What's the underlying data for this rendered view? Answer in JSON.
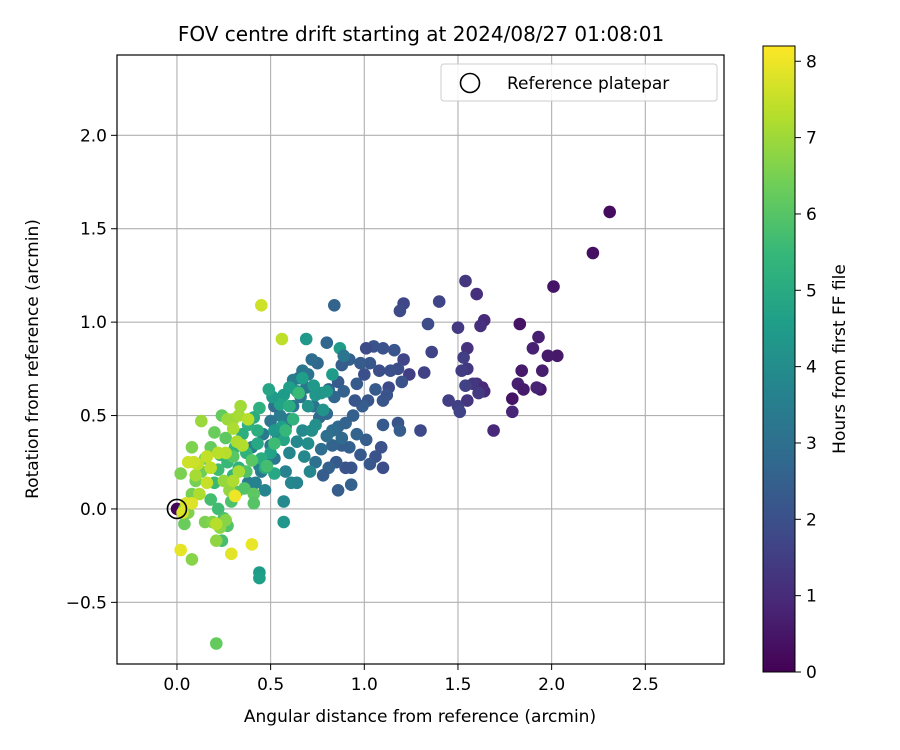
{
  "chart_data": {
    "type": "scatter",
    "title": "FOV centre drift starting at 2024/08/27 01:08:01",
    "xlabel": "Angular distance from reference (arcmin)",
    "ylabel": "Rotation from reference (arcmin)",
    "xlim": [
      -0.32,
      2.92
    ],
    "ylim": [
      -0.83,
      2.43
    ],
    "xticks": [
      0.0,
      0.5,
      1.0,
      1.5,
      2.0,
      2.5
    ],
    "xtick_labels": [
      "0.0",
      "0.5",
      "1.0",
      "1.5",
      "2.0",
      "2.5"
    ],
    "yticks": [
      -0.5,
      0.0,
      0.5,
      1.0,
      1.5,
      2.0
    ],
    "ytick_labels": [
      "−0.5",
      "0.0",
      "0.5",
      "1.0",
      "1.5",
      "2.0"
    ],
    "grid": true,
    "legend": {
      "placement": "top-right",
      "entries": [
        "Reference platepar"
      ]
    },
    "reference_point": {
      "x": 0.0,
      "y": 0.0
    },
    "colorbar": {
      "label": "Hours from first FF file",
      "colormap": "viridis",
      "range": [
        0,
        8.2
      ],
      "ticks": [
        0,
        1,
        2,
        3,
        4,
        5,
        6,
        7,
        8
      ],
      "tick_labels": [
        "0",
        "1",
        "2",
        "3",
        "4",
        "5",
        "6",
        "7",
        "8"
      ]
    },
    "points": [
      [
        0.0,
        0.0,
        0.1
      ],
      [
        2.31,
        1.59,
        0.25
      ],
      [
        2.22,
        1.37,
        0.35
      ],
      [
        2.01,
        1.19,
        0.45
      ],
      [
        2.03,
        0.82,
        0.55
      ],
      [
        1.98,
        0.82,
        0.6
      ],
      [
        1.93,
        0.92,
        0.7
      ],
      [
        1.94,
        0.64,
        0.5
      ],
      [
        1.92,
        0.65,
        0.8
      ],
      [
        1.95,
        0.74,
        0.65
      ],
      [
        1.9,
        0.86,
        0.75
      ],
      [
        1.83,
        0.99,
        0.4
      ],
      [
        1.84,
        0.74,
        0.55
      ],
      [
        1.82,
        0.67,
        0.7
      ],
      [
        1.85,
        0.64,
        0.6
      ],
      [
        1.79,
        0.59,
        0.45
      ],
      [
        1.79,
        0.52,
        0.85
      ],
      [
        1.69,
        0.42,
        0.95
      ],
      [
        1.64,
        1.01,
        1.0
      ],
      [
        1.62,
        0.98,
        1.1
      ],
      [
        1.6,
        0.67,
        1.2
      ],
      [
        1.63,
        0.65,
        0.9
      ],
      [
        1.64,
        0.63,
        1.0
      ],
      [
        1.58,
        0.67,
        1.3
      ],
      [
        1.61,
        0.62,
        1.4
      ],
      [
        1.6,
        1.15,
        1.1
      ],
      [
        1.54,
        1.22,
        1.3
      ],
      [
        1.55,
        0.86,
        1.2
      ],
      [
        1.53,
        0.81,
        1.5
      ],
      [
        1.55,
        0.75,
        1.35
      ],
      [
        1.52,
        0.74,
        1.45
      ],
      [
        1.5,
        0.97,
        1.4
      ],
      [
        1.54,
        0.66,
        1.6
      ],
      [
        1.55,
        0.58,
        1.25
      ],
      [
        1.5,
        0.55,
        1.55
      ],
      [
        1.51,
        0.52,
        1.65
      ],
      [
        1.45,
        0.58,
        1.5
      ],
      [
        1.4,
        1.11,
        1.7
      ],
      [
        1.36,
        0.84,
        1.65
      ],
      [
        1.34,
        0.99,
        1.9
      ],
      [
        1.32,
        0.73,
        1.6
      ],
      [
        1.3,
        0.42,
        1.8
      ],
      [
        1.21,
        1.1,
        1.75
      ],
      [
        1.19,
        1.06,
        1.85
      ],
      [
        1.24,
        0.72,
        1.5
      ],
      [
        1.21,
        0.8,
        1.7
      ],
      [
        1.18,
        0.75,
        1.9
      ],
      [
        1.2,
        0.68,
        2.1
      ],
      [
        1.14,
        0.74,
        2.0
      ],
      [
        1.1,
        0.86,
        2.05
      ],
      [
        1.13,
        0.65,
        1.8
      ],
      [
        1.1,
        0.58,
        2.2
      ],
      [
        1.12,
        0.61,
        2.1
      ],
      [
        1.1,
        0.45,
        2.3
      ],
      [
        1.18,
        0.46,
        2.2
      ],
      [
        1.19,
        0.42,
        2.4
      ],
      [
        1.16,
        0.85,
        2.15
      ],
      [
        1.08,
        0.74,
        1.95
      ],
      [
        1.05,
        0.87,
        2.1
      ],
      [
        1.06,
        0.64,
        2.3
      ],
      [
        1.03,
        0.78,
        2.25
      ],
      [
        1.0,
        0.72,
        2.0
      ],
      [
        1.02,
        0.58,
        2.2
      ],
      [
        1.01,
        0.86,
        1.85
      ],
      [
        0.98,
        0.78,
        2.35
      ],
      [
        0.96,
        0.67,
        2.3
      ],
      [
        0.99,
        0.55,
        2.4
      ],
      [
        0.95,
        0.58,
        2.2
      ],
      [
        0.94,
        0.5,
        2.5
      ],
      [
        1.09,
        0.33,
        2.05
      ],
      [
        1.1,
        0.22,
        1.95
      ],
      [
        1.06,
        0.28,
        2.1
      ],
      [
        1.03,
        0.24,
        2.25
      ],
      [
        1.01,
        0.37,
        2.4
      ],
      [
        0.98,
        0.29,
        2.3
      ],
      [
        0.93,
        0.22,
        2.2
      ],
      [
        0.9,
        0.22,
        2.1
      ],
      [
        0.92,
        0.33,
        2.5
      ],
      [
        0.96,
        0.4,
        2.6
      ],
      [
        0.88,
        0.34,
        2.45
      ],
      [
        0.85,
        0.25,
        2.3
      ],
      [
        0.86,
        0.1,
        2.4
      ],
      [
        0.83,
        0.34,
        2.6
      ],
      [
        0.81,
        0.22,
        2.55
      ],
      [
        0.78,
        0.18,
        2.4
      ],
      [
        0.93,
        0.13,
        2.55
      ],
      [
        0.84,
        1.09,
        2.6
      ],
      [
        0.8,
        0.89,
        2.7
      ],
      [
        0.92,
        0.8,
        2.5
      ],
      [
        0.88,
        0.77,
        2.4
      ],
      [
        0.86,
        0.68,
        2.35
      ],
      [
        0.89,
        0.63,
        2.55
      ],
      [
        0.84,
        0.6,
        2.7
      ],
      [
        0.81,
        0.64,
        2.65
      ],
      [
        0.8,
        0.51,
        2.75
      ],
      [
        0.86,
        0.44,
        2.75
      ],
      [
        0.9,
        0.46,
        2.6
      ],
      [
        0.83,
        0.42,
        2.9
      ],
      [
        0.88,
        0.38,
        2.85
      ],
      [
        0.8,
        0.39,
        3.0
      ],
      [
        0.77,
        0.32,
        2.95
      ],
      [
        0.74,
        0.25,
        3.05
      ],
      [
        0.76,
        0.49,
        2.85
      ],
      [
        0.73,
        0.55,
        3.1
      ],
      [
        0.75,
        0.78,
        2.75
      ],
      [
        0.72,
        0.8,
        2.9
      ],
      [
        0.7,
        0.72,
        3.1
      ],
      [
        0.67,
        0.74,
        3.2
      ],
      [
        0.65,
        0.7,
        3.05
      ],
      [
        0.69,
        0.65,
        3.3
      ],
      [
        0.62,
        0.69,
        3.4
      ],
      [
        0.66,
        0.6,
        3.2
      ],
      [
        0.62,
        0.55,
        3.15
      ],
      [
        0.6,
        0.48,
        3.3
      ],
      [
        0.58,
        0.44,
        3.1
      ],
      [
        0.55,
        0.5,
        3.4
      ],
      [
        0.52,
        0.55,
        3.0
      ],
      [
        0.5,
        0.47,
        3.2
      ],
      [
        0.54,
        0.38,
        3.45
      ],
      [
        0.52,
        0.27,
        3.25
      ],
      [
        0.5,
        0.34,
        3.3
      ],
      [
        0.48,
        0.25,
        3.5
      ],
      [
        0.45,
        0.2,
        3.4
      ],
      [
        0.46,
        0.4,
        3.35
      ],
      [
        0.4,
        0.33,
        3.55
      ],
      [
        0.44,
        0.23,
        3.6
      ],
      [
        0.38,
        0.14,
        3.5
      ],
      [
        0.42,
        0.14,
        3.65
      ],
      [
        0.47,
        0.1,
        3.7
      ],
      [
        0.61,
        0.14,
        3.8
      ],
      [
        0.58,
        0.2,
        3.6
      ],
      [
        0.64,
        0.14,
        3.7
      ],
      [
        0.6,
        0.3,
        3.75
      ],
      [
        0.64,
        0.36,
        3.85
      ],
      [
        0.67,
        0.42,
        3.9
      ],
      [
        0.68,
        0.28,
        3.85
      ],
      [
        0.71,
        0.2,
        3.8
      ],
      [
        0.7,
        0.35,
        4.0
      ],
      [
        0.72,
        0.42,
        4.05
      ],
      [
        0.74,
        0.45,
        4.1
      ],
      [
        0.78,
        0.53,
        4.2
      ],
      [
        0.7,
        0.55,
        4.15
      ],
      [
        0.74,
        0.61,
        4.3
      ],
      [
        0.77,
        0.62,
        4.25
      ],
      [
        0.73,
        0.66,
        4.4
      ],
      [
        0.8,
        0.63,
        4.35
      ],
      [
        0.83,
        0.72,
        4.5
      ],
      [
        0.87,
        0.86,
        4.45
      ],
      [
        0.89,
        0.82,
        3.2
      ],
      [
        0.69,
        0.91,
        4.4
      ],
      [
        0.67,
        0.7,
        4.55
      ],
      [
        0.64,
        0.63,
        4.3
      ],
      [
        0.6,
        0.65,
        4.6
      ],
      [
        0.57,
        0.61,
        4.5
      ],
      [
        0.55,
        0.56,
        4.7
      ],
      [
        0.51,
        0.6,
        4.45
      ],
      [
        0.49,
        0.64,
        4.8
      ],
      [
        0.56,
        0.44,
        4.6
      ],
      [
        0.57,
        0.37,
        4.8
      ],
      [
        0.52,
        0.42,
        4.4
      ],
      [
        0.5,
        0.3,
        4.7
      ],
      [
        0.52,
        0.19,
        4.9
      ],
      [
        0.47,
        0.22,
        5.0
      ],
      [
        0.45,
        0.27,
        5.05
      ],
      [
        0.43,
        0.35,
        4.9
      ],
      [
        0.43,
        0.42,
        5.1
      ],
      [
        0.41,
        0.49,
        5.0
      ],
      [
        0.38,
        0.45,
        5.2
      ],
      [
        0.35,
        0.4,
        5.15
      ],
      [
        0.37,
        0.3,
        5.3
      ],
      [
        0.33,
        0.22,
        5.25
      ],
      [
        0.31,
        0.33,
        5.4
      ],
      [
        0.3,
        0.18,
        5.35
      ],
      [
        0.27,
        0.25,
        5.5
      ],
      [
        0.23,
        0.29,
        5.45
      ],
      [
        0.22,
        0.21,
        5.6
      ],
      [
        0.2,
        0.14,
        5.55
      ],
      [
        0.18,
        0.05,
        5.7
      ],
      [
        0.22,
        0.0,
        5.65
      ],
      [
        0.25,
        -0.05,
        5.8
      ],
      [
        0.24,
        -0.17,
        5.75
      ],
      [
        0.27,
        -0.09,
        5.9
      ],
      [
        0.29,
        0.04,
        5.85
      ],
      [
        0.32,
        0.09,
        6.0
      ],
      [
        0.36,
        0.11,
        5.95
      ],
      [
        0.4,
        0.26,
        6.05
      ],
      [
        0.41,
        0.08,
        6.1
      ],
      [
        0.41,
        0.03,
        6.0
      ],
      [
        0.44,
        -0.34,
        4.5
      ],
      [
        0.44,
        -0.37,
        4.6
      ],
      [
        0.57,
        0.04,
        3.9
      ],
      [
        0.57,
        -0.07,
        4.3
      ],
      [
        0.44,
        0.54,
        5.2
      ],
      [
        0.6,
        0.55,
        5.1
      ],
      [
        0.58,
        0.42,
        5.45
      ],
      [
        0.62,
        0.48,
        5.3
      ],
      [
        0.65,
        0.62,
        5.55
      ],
      [
        0.52,
        0.35,
        5.6
      ],
      [
        0.48,
        0.23,
        5.7
      ],
      [
        0.37,
        0.2,
        5.9
      ],
      [
        0.3,
        0.28,
        6.05
      ],
      [
        0.26,
        0.38,
        6.1
      ],
      [
        0.24,
        0.5,
        6.2
      ],
      [
        0.2,
        0.41,
        6.3
      ],
      [
        0.18,
        0.33,
        6.25
      ],
      [
        0.15,
        0.27,
        6.4
      ],
      [
        0.13,
        0.2,
        6.35
      ],
      [
        0.1,
        0.15,
        6.45
      ],
      [
        0.08,
        0.08,
        6.5
      ],
      [
        0.04,
        0.0,
        6.4
      ],
      [
        0.02,
        0.19,
        6.55
      ],
      [
        0.06,
        -0.02,
        6.6
      ],
      [
        0.04,
        -0.08,
        6.3
      ],
      [
        0.08,
        -0.27,
        6.7
      ],
      [
        0.15,
        -0.07,
        6.55
      ],
      [
        0.19,
        -0.07,
        6.65
      ],
      [
        0.23,
        -0.1,
        6.75
      ],
      [
        0.21,
        -0.17,
        6.8
      ],
      [
        0.26,
        -0.06,
        6.7
      ],
      [
        0.28,
        0.1,
        6.85
      ],
      [
        0.25,
        0.15,
        6.9
      ],
      [
        0.27,
        0.48,
        6.95
      ],
      [
        0.3,
        0.48,
        7.0
      ],
      [
        0.33,
        0.5,
        7.1
      ],
      [
        0.34,
        0.55,
        7.05
      ],
      [
        0.3,
        0.43,
        7.15
      ],
      [
        0.32,
        0.36,
        7.2
      ],
      [
        0.35,
        0.34,
        7.25
      ],
      [
        0.33,
        0.2,
        7.1
      ],
      [
        0.3,
        0.15,
        7.2
      ],
      [
        0.26,
        0.3,
        7.3
      ],
      [
        0.22,
        0.3,
        7.35
      ],
      [
        0.18,
        0.22,
        7.4
      ],
      [
        0.16,
        0.28,
        7.45
      ],
      [
        0.13,
        0.47,
        6.95
      ],
      [
        0.08,
        0.33,
        6.6
      ],
      [
        0.16,
        0.14,
        7.5
      ],
      [
        0.12,
        0.08,
        7.2
      ],
      [
        0.1,
        0.18,
        7.1
      ],
      [
        0.11,
        0.24,
        7.4
      ],
      [
        0.09,
        0.25,
        7.55
      ],
      [
        0.06,
        0.25,
        7.6
      ],
      [
        0.05,
        0.03,
        7.7
      ],
      [
        0.08,
        0.03,
        7.8
      ],
      [
        0.03,
        -0.02,
        7.75
      ],
      [
        0.02,
        -0.22,
        7.9
      ],
      [
        0.21,
        -0.08,
        7.3
      ],
      [
        0.29,
        -0.24,
        7.85
      ],
      [
        0.4,
        -0.19,
        7.95
      ],
      [
        0.31,
        0.07,
        8.0
      ],
      [
        0.38,
        0.48,
        7.3
      ],
      [
        0.45,
        1.09,
        7.6
      ],
      [
        0.56,
        0.91,
        7.4
      ],
      [
        0.21,
        -0.72,
        6.2
      ]
    ]
  }
}
